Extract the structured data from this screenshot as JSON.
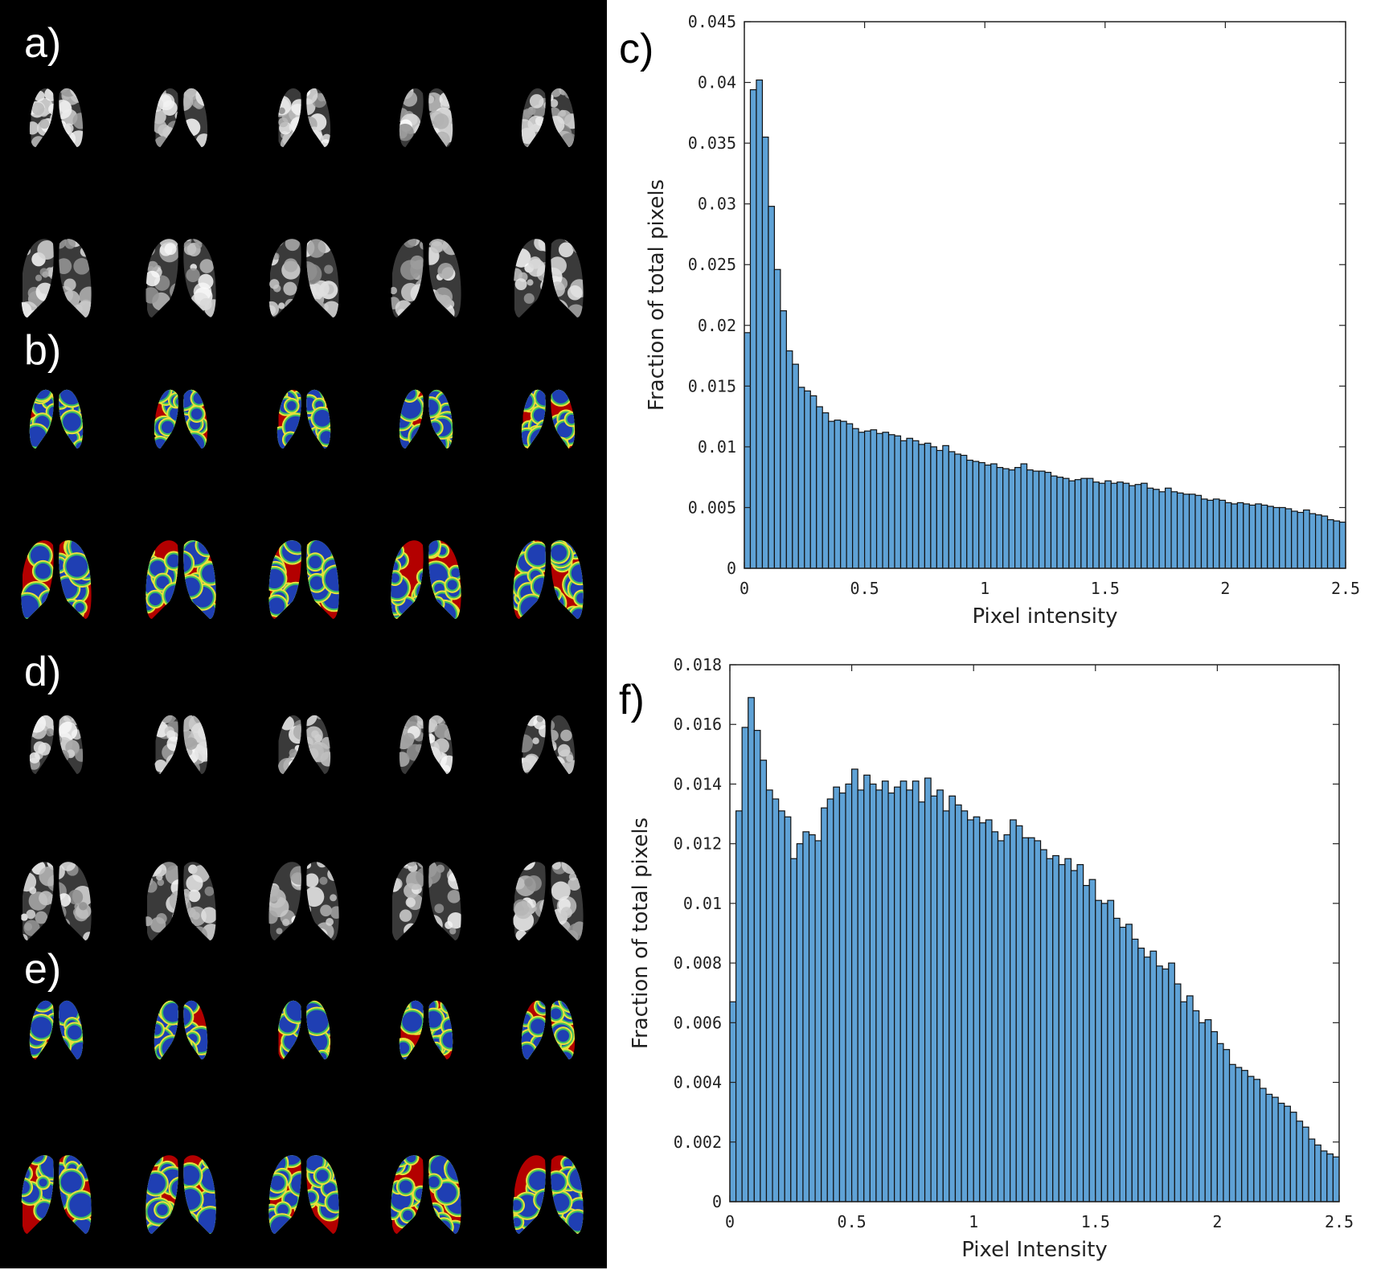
{
  "panels": {
    "a": {
      "label": "a)",
      "rows": 2,
      "cols": 5,
      "style": "grayscale",
      "background": "#000000"
    },
    "b": {
      "label": "b)",
      "rows": 2,
      "cols": 5,
      "style": "color-map",
      "palette": [
        "#b30000",
        "#e8301e",
        "#f5a623",
        "#e8e23a",
        "#3fbf5f",
        "#1f3fb3"
      ]
    },
    "c": {
      "label": "c)"
    },
    "d": {
      "label": "d)",
      "rows": 2,
      "cols": 5,
      "style": "grayscale"
    },
    "e": {
      "label": "e)",
      "rows": 2,
      "cols": 5,
      "style": "color-map",
      "palette": [
        "#b30000",
        "#e8301e",
        "#f5a623",
        "#e8e23a",
        "#3fbf5f",
        "#1f3fb3"
      ]
    },
    "f": {
      "label": "f)"
    }
  },
  "colors": {
    "bar_fill": "#5fa2d6",
    "bar_edge": "#111111",
    "axis": "#222222"
  },
  "chart_data": [
    {
      "id": "c",
      "type": "bar",
      "title": "",
      "xlabel": "Pixel intensity",
      "ylabel": "Fraction of total pixels",
      "xlim": [
        0,
        2.5
      ],
      "ylim": [
        0,
        0.045
      ],
      "xticks": [
        "0",
        "0.5",
        "1",
        "1.5",
        "2",
        "2.5"
      ],
      "xtick_values": [
        0,
        0.5,
        1,
        1.5,
        2,
        2.5
      ],
      "yticks": [
        "0",
        "0.005",
        "0.01",
        "0.015",
        "0.02",
        "0.025",
        "0.03",
        "0.035",
        "0.04",
        "0.045"
      ],
      "ytick_values": [
        0,
        0.005,
        0.01,
        0.015,
        0.02,
        0.025,
        0.03,
        0.035,
        0.04,
        0.045
      ],
      "grid": false,
      "bin_width": 0.025,
      "values": [
        0.0194,
        0.0394,
        0.0402,
        0.0355,
        0.0298,
        0.0246,
        0.0212,
        0.0179,
        0.0168,
        0.0149,
        0.0146,
        0.0142,
        0.0133,
        0.0128,
        0.0121,
        0.0122,
        0.0121,
        0.0119,
        0.0115,
        0.0112,
        0.0113,
        0.0114,
        0.0111,
        0.0112,
        0.011,
        0.0109,
        0.0105,
        0.0107,
        0.0105,
        0.0102,
        0.0103,
        0.01,
        0.0097,
        0.0101,
        0.0096,
        0.0094,
        0.0093,
        0.0089,
        0.0088,
        0.0087,
        0.0085,
        0.0086,
        0.0083,
        0.0082,
        0.0081,
        0.0083,
        0.0086,
        0.0081,
        0.008,
        0.008,
        0.0079,
        0.0076,
        0.0075,
        0.0074,
        0.0072,
        0.0073,
        0.0074,
        0.0074,
        0.0071,
        0.007,
        0.0072,
        0.007,
        0.0071,
        0.007,
        0.0068,
        0.0069,
        0.007,
        0.0066,
        0.0065,
        0.0063,
        0.0066,
        0.0063,
        0.0062,
        0.0061,
        0.0061,
        0.006,
        0.0057,
        0.0056,
        0.0057,
        0.0056,
        0.0054,
        0.0053,
        0.0054,
        0.0053,
        0.0052,
        0.0053,
        0.0052,
        0.0051,
        0.005,
        0.005,
        0.0049,
        0.0047,
        0.0046,
        0.0048,
        0.0045,
        0.0044,
        0.0043,
        0.004,
        0.0039,
        0.0038
      ]
    },
    {
      "id": "f",
      "type": "bar",
      "title": "",
      "xlabel": "Pixel Intensity",
      "ylabel": "Fraction of total pixels",
      "xlim": [
        0,
        2.5
      ],
      "ylim": [
        0,
        0.018
      ],
      "xticks": [
        "0",
        "0.5",
        "1",
        "1.5",
        "2",
        "2.5"
      ],
      "xtick_values": [
        0,
        0.5,
        1,
        1.5,
        2,
        2.5
      ],
      "yticks": [
        "0",
        "0.002",
        "0.004",
        "0.006",
        "0.008",
        "0.01",
        "0.012",
        "0.014",
        "0.016",
        "0.018"
      ],
      "ytick_values": [
        0,
        0.002,
        0.004,
        0.006,
        0.008,
        0.01,
        0.012,
        0.014,
        0.016,
        0.018
      ],
      "grid": false,
      "bin_width": 0.025,
      "values": [
        0.0067,
        0.0131,
        0.0159,
        0.0169,
        0.0158,
        0.0148,
        0.0138,
        0.0135,
        0.0131,
        0.0129,
        0.0115,
        0.012,
        0.0124,
        0.0123,
        0.0121,
        0.0132,
        0.0135,
        0.0139,
        0.0137,
        0.014,
        0.0145,
        0.0138,
        0.0143,
        0.014,
        0.0138,
        0.0141,
        0.0137,
        0.0139,
        0.0141,
        0.0138,
        0.0141,
        0.0134,
        0.0142,
        0.0136,
        0.0138,
        0.0131,
        0.0136,
        0.0133,
        0.0131,
        0.0128,
        0.0129,
        0.0127,
        0.0128,
        0.0124,
        0.0121,
        0.0123,
        0.0128,
        0.0126,
        0.0122,
        0.0122,
        0.0121,
        0.0118,
        0.0115,
        0.0116,
        0.0113,
        0.0115,
        0.0111,
        0.0113,
        0.0106,
        0.0108,
        0.0101,
        0.01,
        0.0101,
        0.0095,
        0.0092,
        0.0093,
        0.0088,
        0.0085,
        0.0082,
        0.0084,
        0.0079,
        0.0078,
        0.008,
        0.0073,
        0.0067,
        0.0069,
        0.0064,
        0.006,
        0.0061,
        0.0057,
        0.0053,
        0.0051,
        0.0046,
        0.0045,
        0.0044,
        0.0042,
        0.0041,
        0.0038,
        0.0036,
        0.0035,
        0.0033,
        0.0032,
        0.003,
        0.0027,
        0.0025,
        0.0021,
        0.0019,
        0.0017,
        0.0016,
        0.0015
      ]
    }
  ]
}
